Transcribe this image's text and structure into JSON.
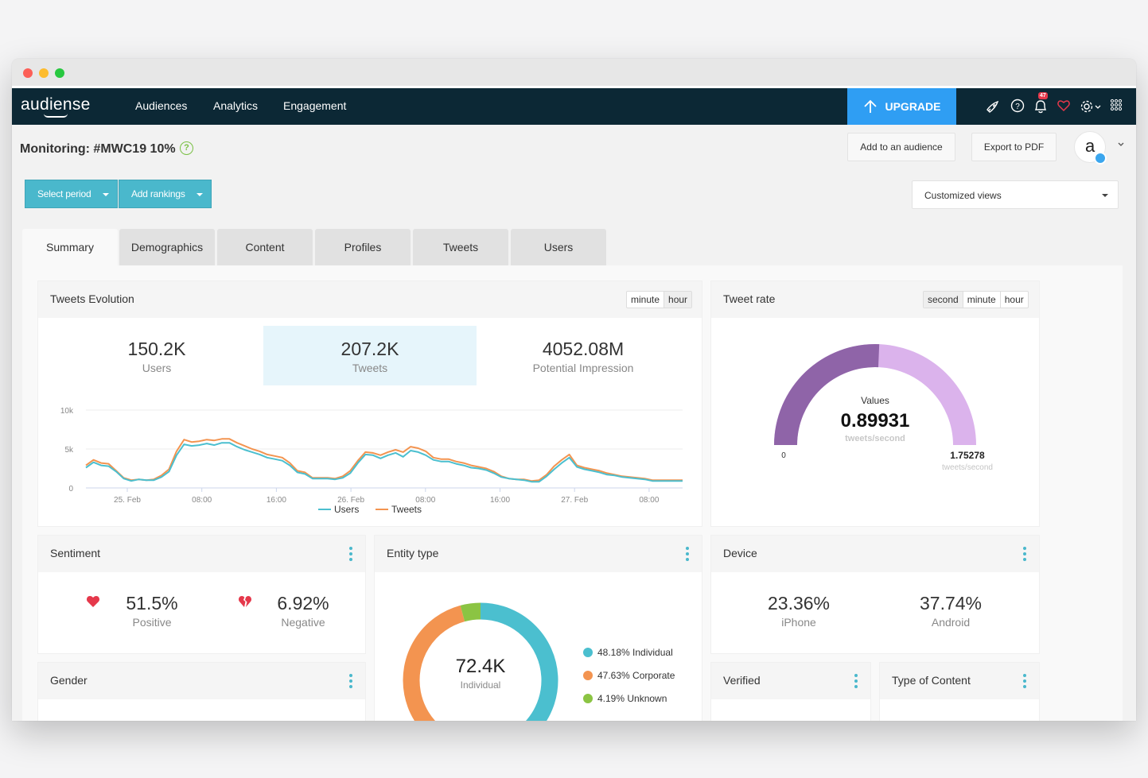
{
  "app": {
    "logo": "audiense",
    "nav": [
      "Audiences",
      "Analytics",
      "Engagement"
    ],
    "upgrade_label": "UPGRADE",
    "notification_count": "47"
  },
  "header": {
    "title": "Monitoring: #MWC19 10%",
    "help_symbol": "?",
    "add_audience_label": "Add to an audience",
    "export_pdf_label": "Export to PDF",
    "avatar_letter": "a"
  },
  "toolbar": {
    "select_period_label": "Select period",
    "add_rankings_label": "Add rankings",
    "customized_views_label": "Customized views"
  },
  "tabs": [
    "Summary",
    "Demographics",
    "Content",
    "Profiles",
    "Tweets",
    "Users"
  ],
  "tweets_evolution": {
    "title": "Tweets Evolution",
    "granularity": [
      "minute",
      "hour"
    ],
    "stats": [
      {
        "value": "150.2K",
        "label": "Users"
      },
      {
        "value": "207.2K",
        "label": "Tweets"
      },
      {
        "value": "4052.08M",
        "label": "Potential Impression"
      }
    ]
  },
  "tweet_rate": {
    "title": "Tweet rate",
    "granularity": [
      "second",
      "minute",
      "hour"
    ],
    "gauge_caption": "Values",
    "value": "0.89931",
    "unit": "tweets/second",
    "min_label": "0",
    "max_value": "1.75278",
    "max_unit": "tweets/second",
    "fraction": 0.513,
    "colors": {
      "filled": "#8f64a8",
      "empty": "#dbb3ec"
    }
  },
  "sentiment": {
    "title": "Sentiment",
    "positive": {
      "value": "51.5%",
      "label": "Positive"
    },
    "negative": {
      "value": "6.92%",
      "label": "Negative"
    }
  },
  "entity_type": {
    "title": "Entity type",
    "center_value": "72.4K",
    "center_label": "Individual",
    "legend": [
      {
        "label": "48.18% Individual",
        "percent": 48.18,
        "color": "#4bbfcf"
      },
      {
        "label": "47.63% Corporate",
        "percent": 47.63,
        "color": "#f39450"
      },
      {
        "label": "4.19% Unknown",
        "percent": 4.19,
        "color": "#8bc443"
      }
    ]
  },
  "device": {
    "title": "Device",
    "iphone": {
      "value": "23.36%",
      "label": "iPhone"
    },
    "android": {
      "value": "37.74%",
      "label": "Android"
    }
  },
  "gender": {
    "title": "Gender"
  },
  "verified": {
    "title": "Verified"
  },
  "type_of_content": {
    "title": "Type of Content"
  },
  "chart_data": {
    "type": "line",
    "x_tick_labels": [
      "25. Feb",
      "08:00",
      "16:00",
      "26. Feb",
      "08:00",
      "16:00",
      "27. Feb",
      "08:00"
    ],
    "y_tick_labels": [
      "10k",
      "5k",
      "0"
    ],
    "ylim": [
      0,
      10000
    ],
    "x": [
      0,
      1,
      2,
      3,
      4,
      5,
      6,
      7,
      8,
      9,
      10,
      11,
      12,
      13,
      14,
      15,
      16,
      17,
      18,
      19,
      20,
      21,
      22,
      23,
      24,
      25,
      26,
      27,
      28,
      29,
      30,
      31,
      32,
      33,
      34,
      35,
      36,
      37,
      38,
      39,
      40,
      41,
      42,
      43,
      44,
      45,
      46,
      47,
      48,
      49,
      50,
      51,
      52,
      53,
      54,
      55,
      56,
      57,
      58,
      59,
      60,
      61,
      62,
      63,
      64,
      65,
      66,
      67,
      68,
      69,
      70,
      71,
      72,
      73,
      74,
      75,
      76,
      77,
      78,
      79
    ],
    "series": [
      {
        "name": "Users",
        "color": "#4bbfcf",
        "values": [
          2600,
          3300,
          2900,
          2800,
          2100,
          1200,
          900,
          1100,
          1000,
          1000,
          1400,
          2100,
          4200,
          5600,
          5400,
          5500,
          5700,
          5500,
          5800,
          5800,
          5300,
          4900,
          4600,
          4300,
          3900,
          3700,
          3500,
          2900,
          2000,
          1800,
          1200,
          1200,
          1200,
          1100,
          1300,
          1900,
          3200,
          4300,
          4200,
          3800,
          4200,
          4500,
          4000,
          4800,
          4600,
          4200,
          3600,
          3400,
          3400,
          3100,
          2900,
          2600,
          2500,
          2300,
          1900,
          1400,
          1200,
          1100,
          1000,
          800,
          800,
          1500,
          2400,
          3200,
          3900,
          2700,
          2400,
          2200,
          2000,
          1700,
          1600,
          1400,
          1300,
          1200,
          1100,
          900,
          900,
          900,
          900,
          900
        ]
      },
      {
        "name": "Tweets",
        "color": "#f39450",
        "values": [
          2900,
          3600,
          3200,
          3100,
          2200,
          1300,
          1000,
          1100,
          1000,
          1100,
          1600,
          2400,
          4700,
          6200,
          5900,
          6000,
          6200,
          6100,
          6300,
          6300,
          5800,
          5400,
          5000,
          4700,
          4300,
          4100,
          3900,
          3200,
          2200,
          2000,
          1300,
          1300,
          1300,
          1200,
          1500,
          2200,
          3500,
          4600,
          4500,
          4200,
          4600,
          4900,
          4600,
          5300,
          5100,
          4700,
          3900,
          3700,
          3700,
          3400,
          3200,
          2900,
          2700,
          2500,
          2100,
          1500,
          1200,
          1100,
          1100,
          900,
          1000,
          1700,
          2800,
          3600,
          4300,
          2900,
          2600,
          2400,
          2200,
          1900,
          1700,
          1500,
          1400,
          1300,
          1200,
          1000,
          1000,
          1000,
          1000,
          1000
        ]
      }
    ],
    "legend_position": "bottom-center"
  }
}
